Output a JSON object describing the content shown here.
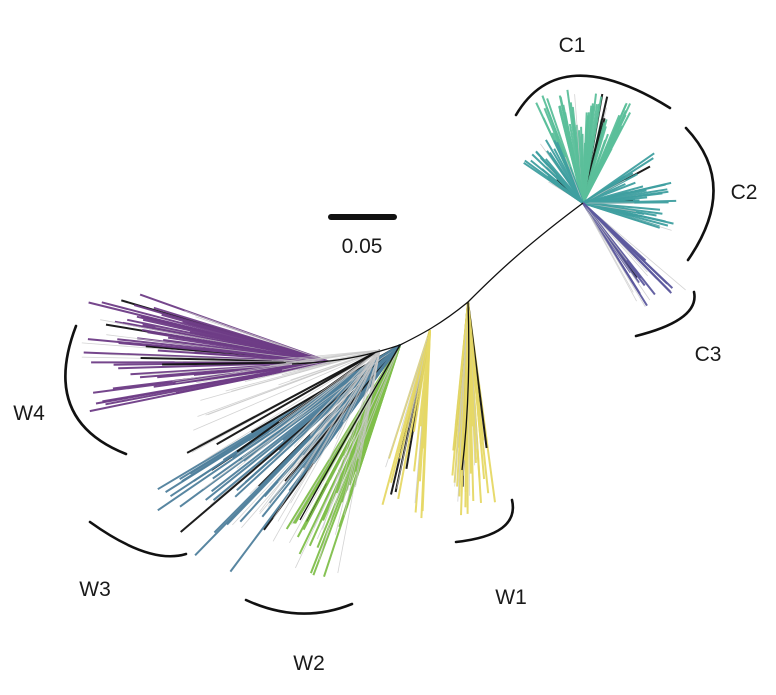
{
  "figure": {
    "scale_bar": {
      "label": "0.05",
      "value": 0.05
    },
    "clades": [
      {
        "id": "C1",
        "label": "C1",
        "color": "#5bbf9a"
      },
      {
        "id": "C2",
        "label": "C2",
        "color": "#3f9fa0"
      },
      {
        "id": "C3",
        "label": "C3",
        "color": "#5d5a9e"
      },
      {
        "id": "W1",
        "label": "W1",
        "color": "#e6d865"
      },
      {
        "id": "W2",
        "label": "W2",
        "color": "#7fbf4b"
      },
      {
        "id": "W3",
        "label": "W3",
        "color": "#4f7f9c"
      },
      {
        "id": "W4",
        "label": "W4",
        "color": "#6e3c86"
      }
    ],
    "colors": {
      "background": "#ffffff",
      "unassigned_branch": "#c8c8c8",
      "backbone": "#111111"
    }
  }
}
